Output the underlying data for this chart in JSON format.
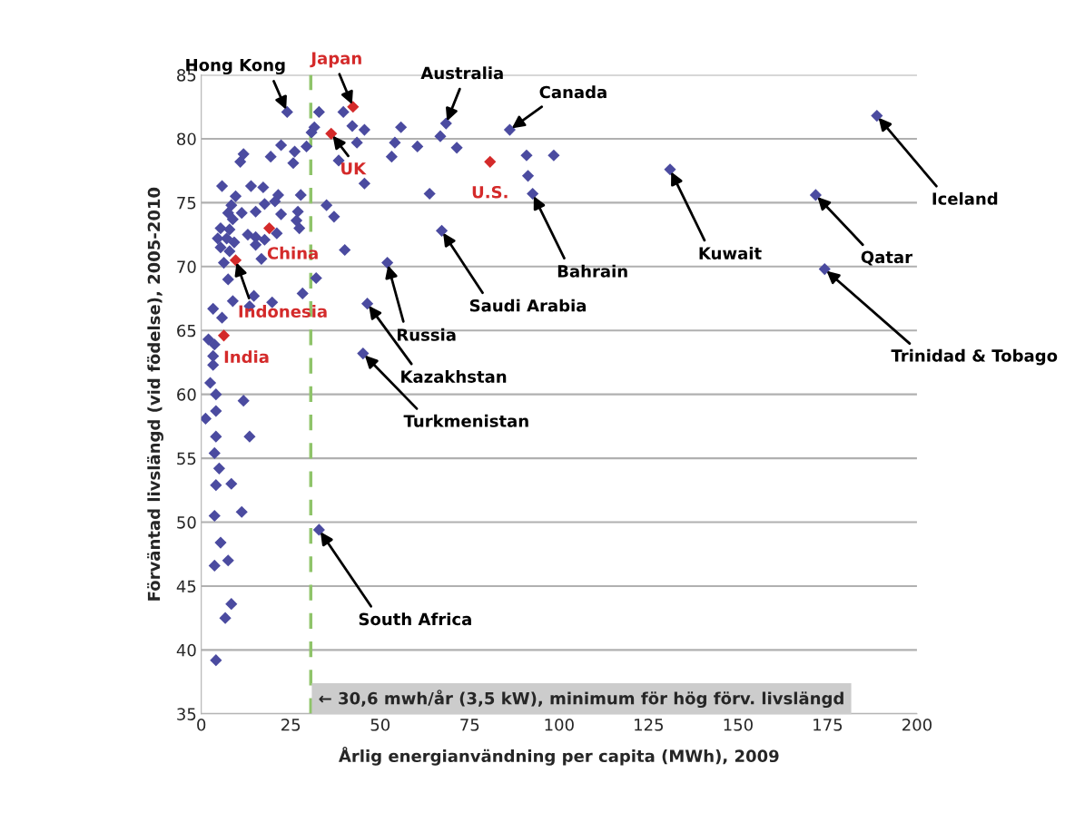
{
  "chart_data": {
    "type": "scatter",
    "xlabel": "Årlig energianvändning per capita (MWh), 2009",
    "ylabel": "Förväntad livslängd (vid födelse), 2005-2010",
    "xlim": [
      0,
      200
    ],
    "ylim": [
      35,
      85
    ],
    "xticks": [
      0,
      25,
      50,
      75,
      100,
      125,
      150,
      175,
      200
    ],
    "yticks": [
      35,
      40,
      45,
      50,
      55,
      60,
      65,
      70,
      75,
      80,
      85
    ],
    "grid": "y",
    "marker": "diamond",
    "legend": false,
    "series": [
      {
        "color": "#4b4ba0",
        "x": [
          24.0,
          32.9,
          39.7,
          31.6,
          30.8,
          29.4,
          42.2,
          45.6,
          43.5,
          38.4,
          45.6,
          22.3,
          19.4,
          26.1,
          25.7,
          11.8,
          10.9,
          5.8,
          13.9,
          17.3,
          9.6,
          21.5,
          27.8,
          8.4,
          17.7,
          20.6,
          7.5,
          11.3,
          15.2,
          22.3,
          27.0,
          35.0,
          37.1,
          8.8,
          26.6,
          5.4,
          7.9,
          13.0,
          15.2,
          21.1,
          27.4,
          4.6,
          7.1,
          9.2,
          5.4,
          7.9,
          15.2,
          17.7,
          6.3,
          16.8,
          40.1,
          7.5,
          32.1,
          28.3,
          8.8,
          13.5,
          14.7,
          19.8,
          3.3,
          5.8,
          2.0,
          3.7,
          3.3,
          3.3,
          45.2,
          46.4,
          2.5,
          4.1,
          11.8,
          4.1,
          1.2,
          4.1,
          13.5,
          3.7,
          5.0,
          4.1,
          8.4,
          3.7,
          11.3,
          32.9,
          5.4,
          3.7,
          7.5,
          8.4,
          6.7,
          4.1,
          55.8,
          54.1,
          60.4,
          53.2,
          68.4,
          66.8,
          71.4,
          86.2,
          90.9,
          98.5,
          91.3,
          92.6,
          63.8,
          67.2,
          52.0,
          131.0,
          171.7,
          174.2,
          188.8
        ],
        "values": [
          82.1,
          82.1,
          82.1,
          80.9,
          80.5,
          79.4,
          81.0,
          80.7,
          79.7,
          78.3,
          76.5,
          79.5,
          78.6,
          79.0,
          78.1,
          78.8,
          78.2,
          76.3,
          76.3,
          76.2,
          75.5,
          75.6,
          75.6,
          74.8,
          74.9,
          75.1,
          74.2,
          74.2,
          74.3,
          74.1,
          74.3,
          74.8,
          73.9,
          73.7,
          73.6,
          73.0,
          72.9,
          72.5,
          72.3,
          72.6,
          73.0,
          72.2,
          72.2,
          71.9,
          71.5,
          71.2,
          71.7,
          72.1,
          70.3,
          70.6,
          71.3,
          69.0,
          69.1,
          67.9,
          67.3,
          66.9,
          67.7,
          67.2,
          66.7,
          66.0,
          64.3,
          63.9,
          63.0,
          62.3,
          63.2,
          67.1,
          60.9,
          60.0,
          59.5,
          58.7,
          58.1,
          56.7,
          56.7,
          55.4,
          54.2,
          52.9,
          53.0,
          50.5,
          50.8,
          49.4,
          48.4,
          46.6,
          47.0,
          43.6,
          42.5,
          39.2,
          80.9,
          79.7,
          79.4,
          78.6,
          81.2,
          80.2,
          79.3,
          80.7,
          78.7,
          78.7,
          77.1,
          75.7,
          75.7,
          72.8,
          70.3,
          77.6,
          75.6,
          69.8,
          81.8
        ]
      },
      {
        "color": "#d42a2a",
        "x": [
          42.4,
          36.3,
          80.7,
          19.0,
          9.6,
          6.3
        ],
        "values": [
          82.5,
          80.4,
          78.2,
          73.0,
          70.5,
          64.6
        ]
      }
    ],
    "ref_lines": [
      {
        "axis": "x",
        "value": 30.6,
        "label": "← 30,6 mwh/år (3,5 kW), minimum för hög förv. livslängd",
        "color": "#8fc46a",
        "line_style": "dashed"
      }
    ],
    "annotations": [
      {
        "text": "Hong Kong",
        "x": 24.0,
        "y": 82.1
      },
      {
        "text": "Japan",
        "x": 42.4,
        "y": 82.5
      },
      {
        "text": "UK",
        "x": 36.3,
        "y": 80.4
      },
      {
        "text": "Australia",
        "x": 68.4,
        "y": 81.2
      },
      {
        "text": "Canada",
        "x": 86.2,
        "y": 80.7
      },
      {
        "text": "U.S.",
        "x": 80.7,
        "y": 78.2
      },
      {
        "text": "Iceland",
        "x": 188.8,
        "y": 81.8
      },
      {
        "text": "Kuwait",
        "x": 131.0,
        "y": 77.6
      },
      {
        "text": "Qatar",
        "x": 171.7,
        "y": 75.6
      },
      {
        "text": "Bahrain",
        "x": 92.6,
        "y": 75.7
      },
      {
        "text": "Trinidad & Tobago",
        "x": 174.2,
        "y": 69.8
      },
      {
        "text": "Saudi Arabia",
        "x": 67.2,
        "y": 72.8
      },
      {
        "text": "China",
        "x": 19.0,
        "y": 73.0
      },
      {
        "text": "Indonesia",
        "x": 9.6,
        "y": 70.5
      },
      {
        "text": "India",
        "x": 6.3,
        "y": 64.6
      },
      {
        "text": "Russia",
        "x": 52.0,
        "y": 70.3
      },
      {
        "text": "Kazakhstan",
        "x": 46.4,
        "y": 67.1
      },
      {
        "text": "Turkmenistan",
        "x": 45.2,
        "y": 63.2
      },
      {
        "text": "South Africa",
        "x": 32.9,
        "y": 49.4
      }
    ]
  }
}
